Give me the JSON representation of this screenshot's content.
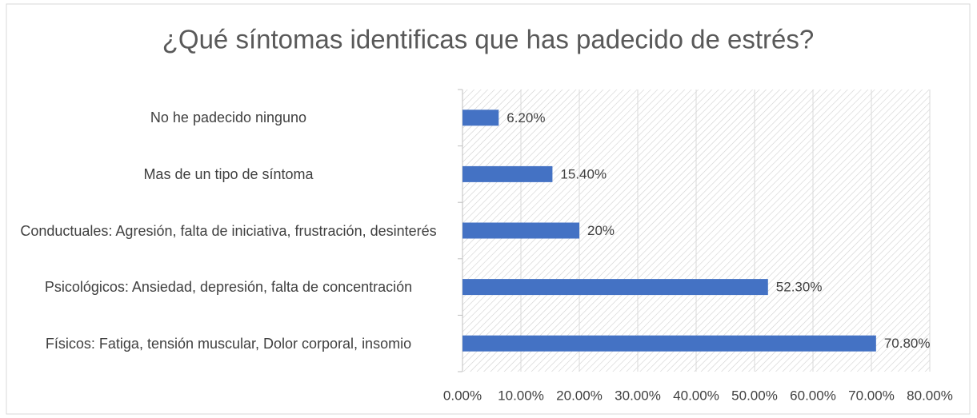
{
  "chart_data": {
    "type": "bar",
    "orientation": "horizontal",
    "title": "¿Qué síntomas identificas que has padecido de estrés?",
    "categories": [
      "No he padecido ninguno",
      "Mas de un tipo de síntoma",
      "Conductuales: Agresión, falta de iniciativa, frustración, desinterés",
      "Psicológicos: Ansiedad, depresión, falta de concentración",
      "Físicos: Fatiga, tensión muscular, Dolor corporal, insomio"
    ],
    "values": [
      6.2,
      15.4,
      20,
      52.3,
      70.8
    ],
    "value_labels": [
      "6.20%",
      "15.40%",
      "20%",
      "52.30%",
      "70.80%"
    ],
    "color": "#4472c4",
    "xlim": [
      0,
      80
    ],
    "xticks": [
      {
        "value": 0,
        "label": "0.00%"
      },
      {
        "value": 10,
        "label": "10.00%"
      },
      {
        "value": 20,
        "label": "20.00%"
      },
      {
        "value": 30,
        "label": "30.00%"
      },
      {
        "value": 40,
        "label": "40.00%"
      },
      {
        "value": 50,
        "label": "50.00%"
      },
      {
        "value": 60,
        "label": "60.00%"
      },
      {
        "value": 70,
        "label": "70.00%"
      },
      {
        "value": 80,
        "label": "80.00%"
      }
    ],
    "grid": true
  }
}
